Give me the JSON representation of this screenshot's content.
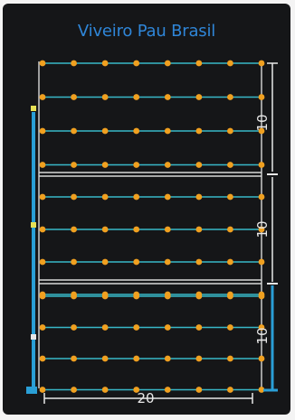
{
  "app": {
    "title": "Viveiro Pau Brasil"
  },
  "colors": {
    "background": "#151618",
    "title": "#2f86d8",
    "row_line": "#38b8c8",
    "plant_marker": "#f0a020",
    "frame": "#d8d8d8",
    "dimension": "#e8e8e8",
    "accent": "#2a9fd6"
  },
  "layout": {
    "rows": 12,
    "plants_per_row": 8,
    "blocks": 3,
    "rows_per_block": 4
  },
  "dimensions": {
    "block_depth": [
      "10",
      "10",
      "10"
    ],
    "total_width": "20"
  }
}
